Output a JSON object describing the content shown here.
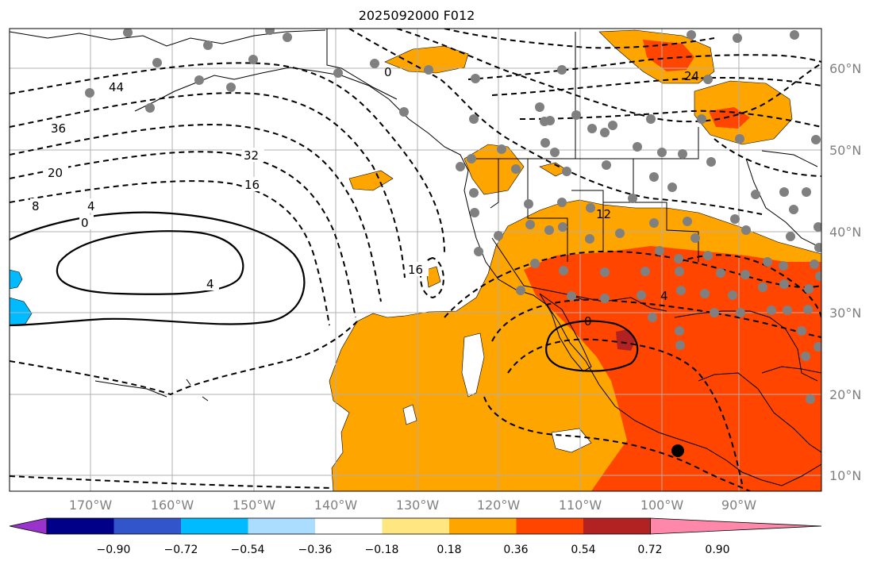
{
  "title": "2025092000 F012",
  "lon_labels": [
    "170°W",
    "160°W",
    "150°W",
    "140°W",
    "130°W",
    "120°W",
    "110°W",
    "100°W",
    "90°W"
  ],
  "lat_labels": [
    "60°N",
    "50°N",
    "40°N",
    "30°N",
    "20°N",
    "10°N"
  ],
  "colorbar": {
    "colors": [
      "#9933cc",
      "#000088",
      "#3355cc",
      "#00bbff",
      "#aaddff",
      "#ffffff",
      "#ffe680",
      "#ffa500",
      "#ff4500",
      "#b22222",
      "#ff88aa"
    ],
    "tick_labels": [
      "−0.90",
      "−0.72",
      "−0.54",
      "−0.36",
      "−0.18",
      "0.18",
      "0.36",
      "0.54",
      "0.72",
      "0.90"
    ]
  },
  "contour_labels": [
    "44",
    "36",
    "32",
    "20",
    "16",
    "8",
    "4",
    "0",
    "4",
    "16",
    "12",
    "4",
    "0",
    "24",
    "0"
  ],
  "marker_icon": "black-dot-marker",
  "station_icon": "gray-station-dot"
}
